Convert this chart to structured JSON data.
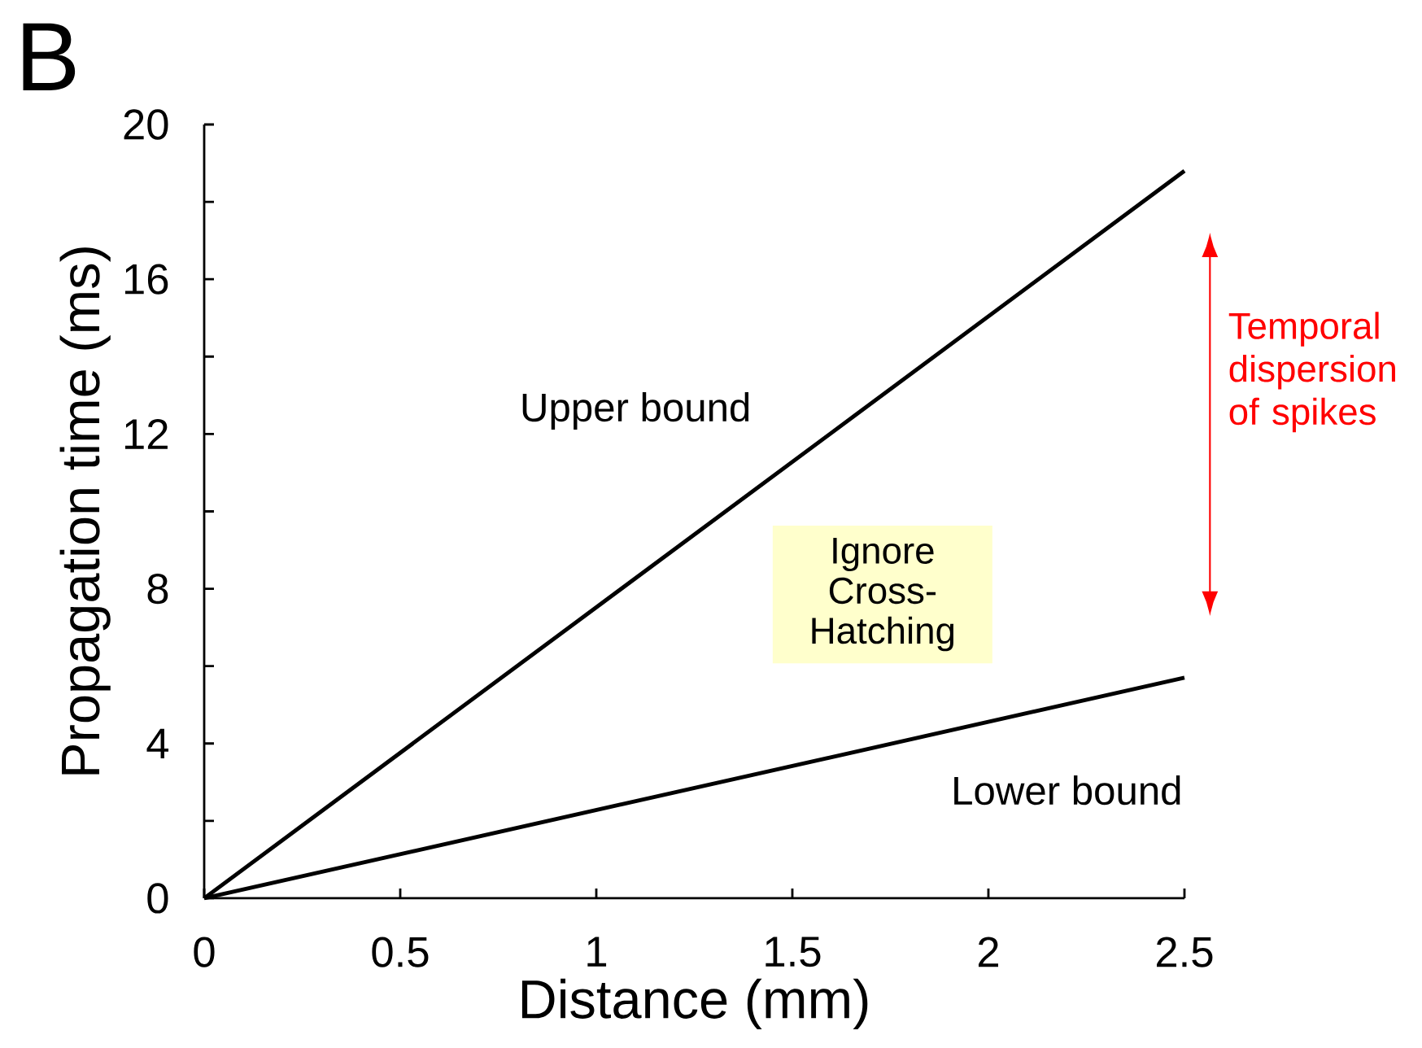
{
  "chart_data": {
    "type": "line",
    "title": "B",
    "xlabel": "Distance (mm)",
    "ylabel": "Propagation time (ms)",
    "x": [
      0,
      2.5
    ],
    "series": [
      {
        "name": "Upper bound",
        "color": "#000000",
        "values": [
          0,
          18.8
        ]
      },
      {
        "name": "Lower bound",
        "color": "#000000",
        "values": [
          0,
          5.7
        ]
      }
    ],
    "xlim": [
      0,
      2.5
    ],
    "ylim": [
      0,
      20
    ],
    "xticks": [
      0,
      0.5,
      1,
      1.5,
      2,
      2.5
    ],
    "yticks": [
      0,
      {
        "value": 2,
        "label": null
      },
      4,
      {
        "value": 6,
        "label": null
      },
      8,
      {
        "value": 10,
        "label": null
      },
      12,
      {
        "value": 14,
        "label": null
      },
      16,
      {
        "value": 18,
        "label": null
      },
      20
    ],
    "annotations": [
      "Ignore Cross-Hatching",
      "Temporal dispersion of spikes"
    ],
    "grid": false,
    "legend": false,
    "marker": "none",
    "line_style": "solid"
  }
}
